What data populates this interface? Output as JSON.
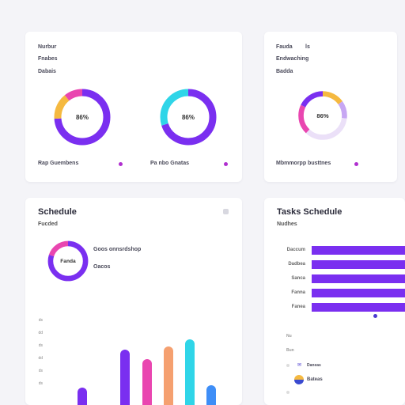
{
  "top_left": {
    "items": [
      "Nurbur",
      "Fnabes",
      "Dabais"
    ],
    "donut1": {
      "label": "86%",
      "segments": [
        {
          "value": 68,
          "color": "#7a2ff0"
        },
        {
          "value": 14,
          "color": "#f5b940"
        },
        {
          "value": 10,
          "color": "#e946b0"
        }
      ]
    },
    "donut2": {
      "label": "86%",
      "segments": [
        {
          "value": 70,
          "color": "#7a2ff0"
        },
        {
          "value": 30,
          "color": "#2fd5e8"
        }
      ]
    },
    "footer_left": "Rap Guembens",
    "footer_right": "Pa nbo Gnatas",
    "accent": "#b02fcf"
  },
  "top_right": {
    "items": [
      "Fauda",
      "Endwaching",
      "Badda"
    ],
    "item1_suffix": "ls",
    "donut": {
      "label": "86%",
      "segments": [
        {
          "value": 15,
          "color": "#f5b940"
        },
        {
          "value": 12,
          "color": "#c7a7f3"
        },
        {
          "value": 35,
          "color": "#ebe0f8"
        },
        {
          "value": 20,
          "color": "#e946b0"
        },
        {
          "value": 18,
          "color": "#7a2ff0"
        }
      ]
    },
    "footer": "Mbmmorpp busttnes"
  },
  "bottom_left": {
    "title": "Schedule",
    "subtitle": "Fucded",
    "donut": {
      "label": "Fanda",
      "segments": [
        {
          "value": 80,
          "color": "#7a2ff0"
        },
        {
          "value": 20,
          "color": "#e946b0"
        }
      ]
    },
    "legend": [
      "Goos onnsrdshop",
      "Oacos"
    ],
    "y_ticks": [
      "ds",
      "dd",
      "ds",
      "dd",
      "ds",
      "ds"
    ],
    "bars": [
      {
        "value": 20,
        "color": "#7a2ff0"
      },
      {
        "value": 62,
        "color": "#7a2ff0"
      },
      {
        "value": 52,
        "color": "#e946b0"
      },
      {
        "value": 66,
        "color": "#f5a070"
      },
      {
        "value": 74,
        "color": "#2fd5e8"
      },
      {
        "value": 22,
        "color": "#3e8ef7"
      }
    ]
  },
  "bottom_right": {
    "title": "Tasks Schedule",
    "subtitle": "Nudhes",
    "bars": [
      {
        "label": "Daccum",
        "value": 100
      },
      {
        "label": "Dadbea",
        "value": 100
      },
      {
        "label": "Sanca",
        "value": 100
      },
      {
        "label": "Fanna",
        "value": 100
      },
      {
        "label": "Fanea",
        "value": 100
      }
    ],
    "lower_labels": [
      "Nu",
      "Bun"
    ],
    "rows": [
      {
        "text": "Daneas"
      },
      {
        "text": "Bateas"
      }
    ]
  }
}
